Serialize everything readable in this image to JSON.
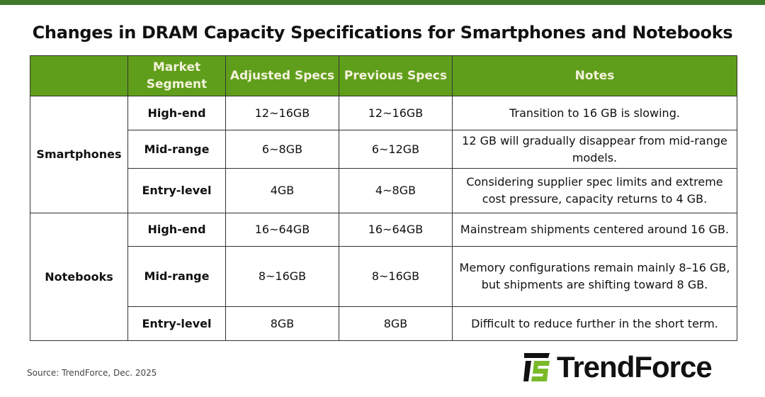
{
  "title": "Changes in DRAM Capacity Specifications for Smartphones and Notebooks",
  "headers": [
    "",
    "Market Segment",
    "Adjusted Specs",
    "Previous Specs",
    "Notes"
  ],
  "groups": [
    {
      "name": "Smartphones",
      "rows": [
        {
          "segment": "High-end",
          "adjusted": "12~16GB",
          "previous": "12~16GB",
          "notes": "Transition to 16 GB is slowing."
        },
        {
          "segment": "Mid-range",
          "adjusted": "6~8GB",
          "previous": "6~12GB",
          "notes": "12 GB will gradually disappear from mid-range models."
        },
        {
          "segment": "Entry-level",
          "adjusted": "4GB",
          "previous": "4~8GB",
          "notes": "Considering supplier spec limits and extreme cost pressure, capacity returns to 4 GB."
        }
      ]
    },
    {
      "name": "Notebooks",
      "rows": [
        {
          "segment": "High-end",
          "adjusted": "16~64GB",
          "previous": "16~64GB",
          "notes": "Mainstream shipments centered around 16 GB."
        },
        {
          "segment": "Mid-range",
          "adjusted": "8~16GB",
          "previous": "8~16GB",
          "notes": "Memory configurations remain mainly 8–16 GB, but shipments are shifting toward 8 GB."
        },
        {
          "segment": "Entry-level",
          "adjusted": "8GB",
          "previous": "8GB",
          "notes": "Difficult to reduce further in the short term."
        }
      ]
    }
  ],
  "source": "Source: TrendForce,  Dec. 2025",
  "logo_text": "TrendForce",
  "colors": {
    "header": "#5f9e1a",
    "topbar": "#3f7a2a"
  }
}
